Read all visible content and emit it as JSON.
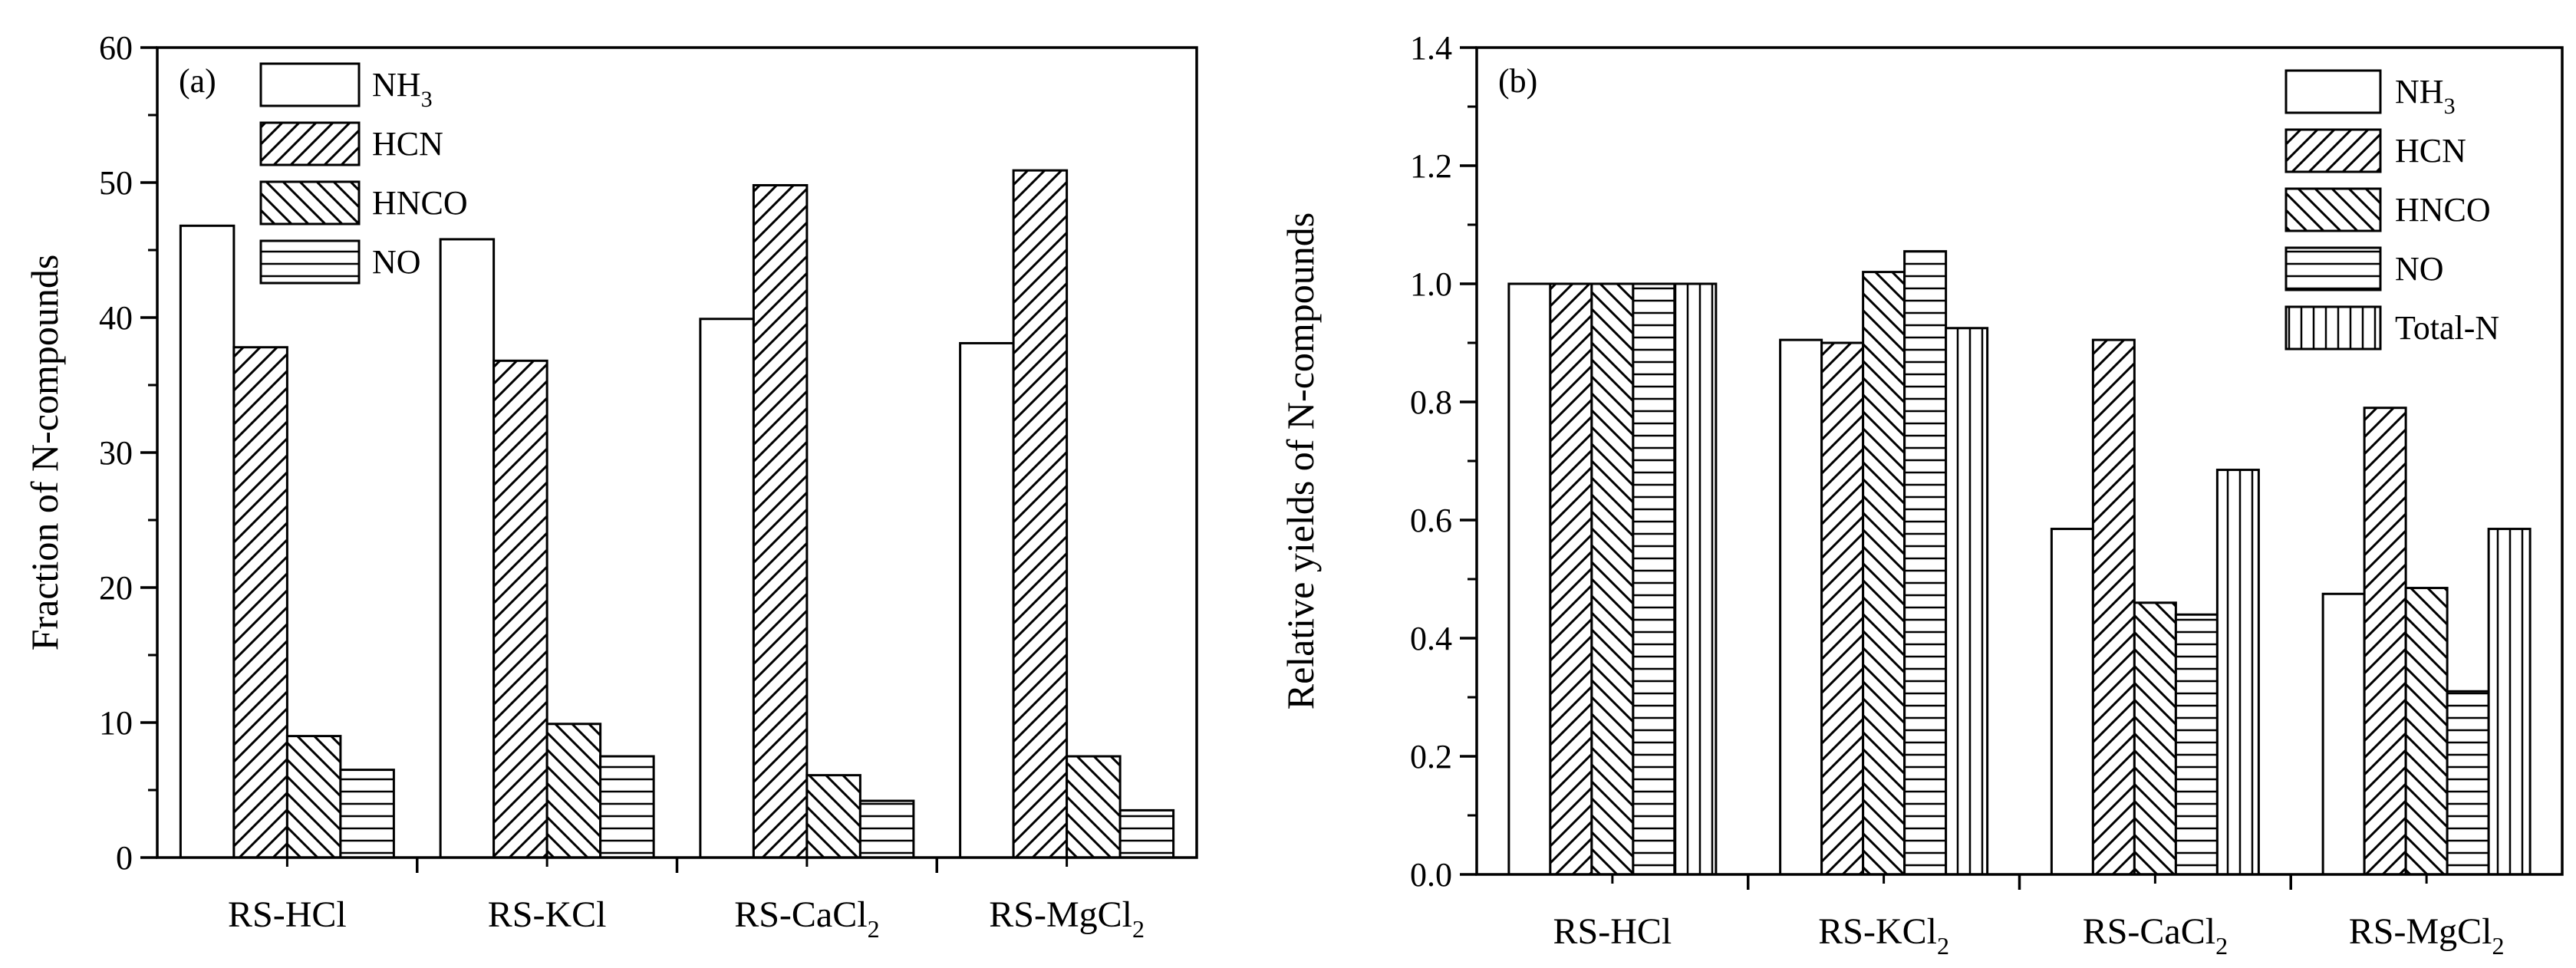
{
  "figure": {
    "background": "#ffffff",
    "stroke": "#000000"
  },
  "chart_data": [
    {
      "type": "bar",
      "panel_label": "(a)",
      "title": "",
      "xlabel": "",
      "ylabel": "Fraction of N-compounds",
      "ylim": [
        0,
        60
      ],
      "yticks": [
        "0",
        "10",
        "20",
        "30",
        "40",
        "50",
        "60"
      ],
      "categories": [
        {
          "base": "RS-HCl",
          "sub": ""
        },
        {
          "base": "RS-KCl",
          "sub": ""
        },
        {
          "base": "RS-CaCl",
          "sub": "2"
        },
        {
          "base": "RS-MgCl",
          "sub": "2"
        }
      ],
      "series": [
        {
          "name": "NH3",
          "label_base": "NH",
          "label_sub": "3",
          "pattern": "none",
          "values": [
            46.8,
            45.8,
            39.9,
            38.1
          ]
        },
        {
          "name": "HCN",
          "label_base": "HCN",
          "label_sub": "",
          "pattern": "diag-up",
          "values": [
            37.8,
            36.8,
            49.8,
            50.9
          ]
        },
        {
          "name": "HNCO",
          "label_base": "HNCO",
          "label_sub": "",
          "pattern": "diag-down",
          "values": [
            9.0,
            9.9,
            6.1,
            7.5
          ]
        },
        {
          "name": "NO",
          "label_base": "NO",
          "label_sub": "",
          "pattern": "horizontal",
          "values": [
            6.5,
            7.5,
            4.2,
            3.5
          ]
        }
      ],
      "legend": "top-left"
    },
    {
      "type": "bar",
      "panel_label": "(b)",
      "title": "",
      "xlabel": "",
      "ylabel": "Relative yields of N-compounds",
      "ylim": [
        0,
        1.4
      ],
      "yticks": [
        "0.0",
        "0.2",
        "0.4",
        "0.6",
        "0.8",
        "1.0",
        "1.2",
        "1.4"
      ],
      "categories": [
        {
          "base": "RS-HCl",
          "sub": ""
        },
        {
          "base": "RS-KCl",
          "sub": "2"
        },
        {
          "base": "RS-CaCl",
          "sub": "2"
        },
        {
          "base": "RS-MgCl",
          "sub": "2"
        }
      ],
      "series": [
        {
          "name": "NH3",
          "label_base": "NH",
          "label_sub": "3",
          "pattern": "none",
          "values": [
            1.0,
            0.905,
            0.585,
            0.475
          ]
        },
        {
          "name": "HCN",
          "label_base": "HCN",
          "label_sub": "",
          "pattern": "diag-up",
          "values": [
            1.0,
            0.9,
            0.905,
            0.79
          ]
        },
        {
          "name": "HNCO",
          "label_base": "HNCO",
          "label_sub": "",
          "pattern": "diag-down",
          "values": [
            1.0,
            1.02,
            0.46,
            0.485
          ]
        },
        {
          "name": "NO",
          "label_base": "NO",
          "label_sub": "",
          "pattern": "horizontal",
          "values": [
            1.0,
            1.055,
            0.44,
            0.31
          ]
        },
        {
          "name": "Total-N",
          "label_base": "Total-N",
          "label_sub": "",
          "pattern": "vertical",
          "values": [
            1.0,
            0.925,
            0.685,
            0.585
          ]
        }
      ],
      "legend": "top-right"
    }
  ]
}
